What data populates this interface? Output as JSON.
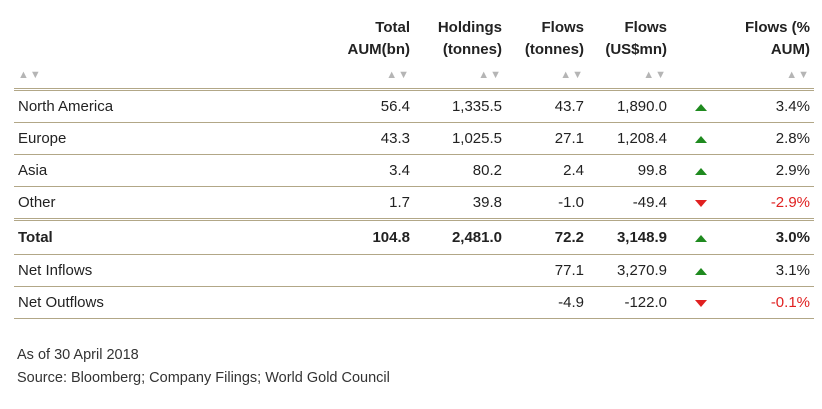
{
  "columns": {
    "region": "",
    "aum": [
      "Total",
      "AUM(bn)"
    ],
    "holdings": [
      "Holdings",
      "(tonnes)"
    ],
    "flows_tonnes": [
      "Flows",
      "(tonnes)"
    ],
    "flows_usd": [
      "Flows",
      "(US$mn)"
    ],
    "flows_pct": [
      "Flows (%",
      "AUM)"
    ],
    "sort_glyph": "▲▼"
  },
  "rows": [
    {
      "label": "North America",
      "aum": "56.4",
      "holdings": "1,335.5",
      "flows_t": "43.7",
      "flows_usd": "1,890.0",
      "dir": "up",
      "pct": "3.4%"
    },
    {
      "label": "Europe",
      "aum": "43.3",
      "holdings": "1,025.5",
      "flows_t": "27.1",
      "flows_usd": "1,208.4",
      "dir": "up",
      "pct": "2.8%"
    },
    {
      "label": "Asia",
      "aum": "3.4",
      "holdings": "80.2",
      "flows_t": "2.4",
      "flows_usd": "99.8",
      "dir": "up",
      "pct": "2.9%"
    },
    {
      "label": "Other",
      "aum": "1.7",
      "holdings": "39.8",
      "flows_t": "-1.0",
      "flows_usd": "-49.4",
      "dir": "down",
      "pct": "-2.9%"
    }
  ],
  "total": {
    "label": "Total",
    "aum": "104.8",
    "holdings": "2,481.0",
    "flows_t": "72.2",
    "flows_usd": "3,148.9",
    "dir": "up",
    "pct": "3.0%"
  },
  "net": [
    {
      "label": "Net Inflows",
      "flows_t": "77.1",
      "flows_usd": "3,270.9",
      "dir": "up",
      "pct": "3.1%"
    },
    {
      "label": "Net Outflows",
      "flows_t": "-4.9",
      "flows_usd": "-122.0",
      "dir": "down",
      "pct": "-0.1%"
    }
  ],
  "notes": {
    "date": "As of 30 April 2018",
    "source": "Source: Bloomberg; Company Filings; World Gold Council"
  },
  "colors": {
    "up": "#1f8a1f",
    "down": "#e02020",
    "rule": "#b2a787"
  }
}
